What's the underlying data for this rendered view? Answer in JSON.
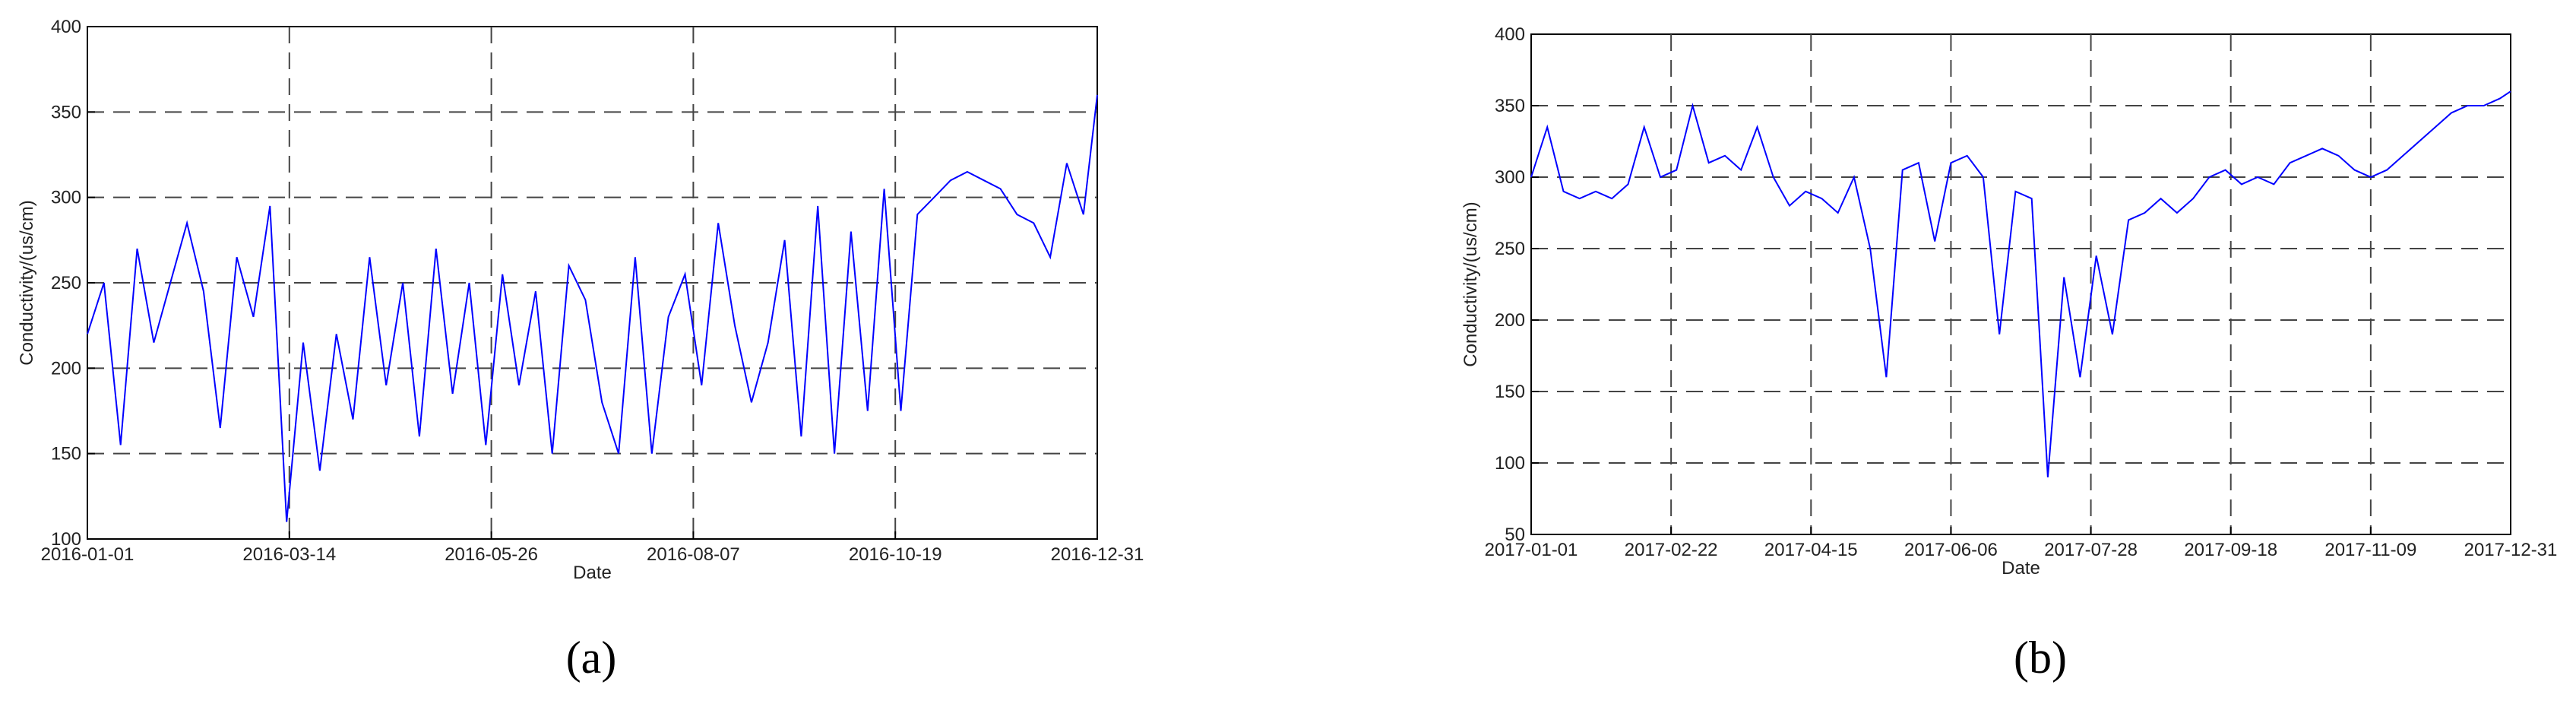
{
  "chart_data": [
    {
      "type": "line",
      "caption": "(a)",
      "xlabel": "Date",
      "ylabel": "Conductivity/(us/cm)",
      "xlim": [
        "2016-01-01",
        "2016-12-31"
      ],
      "xticks": [
        "2016-01-01",
        "2016-03-14",
        "2016-05-26",
        "2016-08-07",
        "2016-10-19",
        "2016-12-31"
      ],
      "ylim": [
        100,
        400
      ],
      "yticks": [
        100,
        150,
        200,
        250,
        300,
        350,
        400
      ],
      "grid": true,
      "x": [
        "2016-01-01",
        "2016-01-07",
        "2016-01-13",
        "2016-01-19",
        "2016-01-25",
        "2016-01-31",
        "2016-02-06",
        "2016-02-12",
        "2016-02-18",
        "2016-02-24",
        "2016-03-01",
        "2016-03-07",
        "2016-03-13",
        "2016-03-19",
        "2016-03-25",
        "2016-03-31",
        "2016-04-06",
        "2016-04-12",
        "2016-04-18",
        "2016-04-24",
        "2016-04-30",
        "2016-05-06",
        "2016-05-12",
        "2016-05-18",
        "2016-05-24",
        "2016-05-30",
        "2016-06-05",
        "2016-06-11",
        "2016-06-17",
        "2016-06-23",
        "2016-06-29",
        "2016-07-05",
        "2016-07-11",
        "2016-07-17",
        "2016-07-23",
        "2016-07-29",
        "2016-08-04",
        "2016-08-10",
        "2016-08-16",
        "2016-08-22",
        "2016-08-28",
        "2016-09-03",
        "2016-09-09",
        "2016-09-15",
        "2016-09-21",
        "2016-09-27",
        "2016-10-03",
        "2016-10-09",
        "2016-10-15",
        "2016-10-21",
        "2016-10-27",
        "2016-11-02",
        "2016-11-08",
        "2016-11-14",
        "2016-11-20",
        "2016-11-26",
        "2016-12-02",
        "2016-12-08",
        "2016-12-14",
        "2016-12-20",
        "2016-12-26",
        "2016-12-31"
      ],
      "series": [
        {
          "color": "#0000ff",
          "values": [
            220,
            250,
            155,
            270,
            215,
            250,
            285,
            245,
            165,
            265,
            230,
            295,
            110,
            215,
            140,
            220,
            170,
            265,
            190,
            250,
            160,
            270,
            185,
            250,
            155,
            255,
            190,
            245,
            150,
            260,
            240,
            180,
            150,
            265,
            150,
            230,
            255,
            190,
            285,
            225,
            180,
            215,
            275,
            160,
            295,
            150,
            280,
            175,
            305,
            175,
            290,
            300,
            310,
            315,
            310,
            305,
            290,
            285,
            265,
            320,
            290,
            360
          ]
        }
      ]
    },
    {
      "type": "line",
      "caption": "(b)",
      "xlabel": "Date",
      "ylabel": "Conductivity/(us/cm)",
      "xlim": [
        "2017-01-01",
        "2017-12-31"
      ],
      "xticks": [
        "2017-01-01",
        "2017-02-22",
        "2017-04-15",
        "2017-06-06",
        "2017-07-28",
        "2017-09-18",
        "2017-11-09",
        "2017-12-31"
      ],
      "ylim": [
        50,
        400
      ],
      "yticks": [
        50,
        100,
        150,
        200,
        250,
        300,
        350,
        400
      ],
      "grid": true,
      "x": [
        "2017-01-01",
        "2017-01-07",
        "2017-01-13",
        "2017-01-19",
        "2017-01-25",
        "2017-01-31",
        "2017-02-06",
        "2017-02-12",
        "2017-02-18",
        "2017-02-24",
        "2017-03-02",
        "2017-03-08",
        "2017-03-14",
        "2017-03-20",
        "2017-03-26",
        "2017-04-01",
        "2017-04-07",
        "2017-04-13",
        "2017-04-19",
        "2017-04-25",
        "2017-05-01",
        "2017-05-07",
        "2017-05-13",
        "2017-05-19",
        "2017-05-25",
        "2017-05-31",
        "2017-06-06",
        "2017-06-12",
        "2017-06-18",
        "2017-06-24",
        "2017-06-30",
        "2017-07-06",
        "2017-07-12",
        "2017-07-18",
        "2017-07-24",
        "2017-07-30",
        "2017-08-05",
        "2017-08-11",
        "2017-08-17",
        "2017-08-23",
        "2017-08-29",
        "2017-09-04",
        "2017-09-10",
        "2017-09-16",
        "2017-09-22",
        "2017-09-28",
        "2017-10-04",
        "2017-10-10",
        "2017-10-16",
        "2017-10-22",
        "2017-10-28",
        "2017-11-03",
        "2017-11-09",
        "2017-11-15",
        "2017-11-21",
        "2017-11-27",
        "2017-12-03",
        "2017-12-09",
        "2017-12-15",
        "2017-12-21",
        "2017-12-27",
        "2017-12-31"
      ],
      "series": [
        {
          "color": "#0000ff",
          "values": [
            300,
            335,
            290,
            285,
            290,
            285,
            295,
            335,
            300,
            305,
            350,
            310,
            315,
            305,
            335,
            300,
            280,
            290,
            285,
            275,
            300,
            250,
            160,
            305,
            310,
            255,
            310,
            315,
            300,
            190,
            290,
            285,
            90,
            230,
            160,
            245,
            190,
            270,
            275,
            285,
            275,
            285,
            300,
            305,
            295,
            300,
            295,
            310,
            315,
            320,
            315,
            305,
            300,
            305,
            315,
            325,
            335,
            345,
            350,
            350,
            355,
            360
          ]
        }
      ]
    }
  ]
}
